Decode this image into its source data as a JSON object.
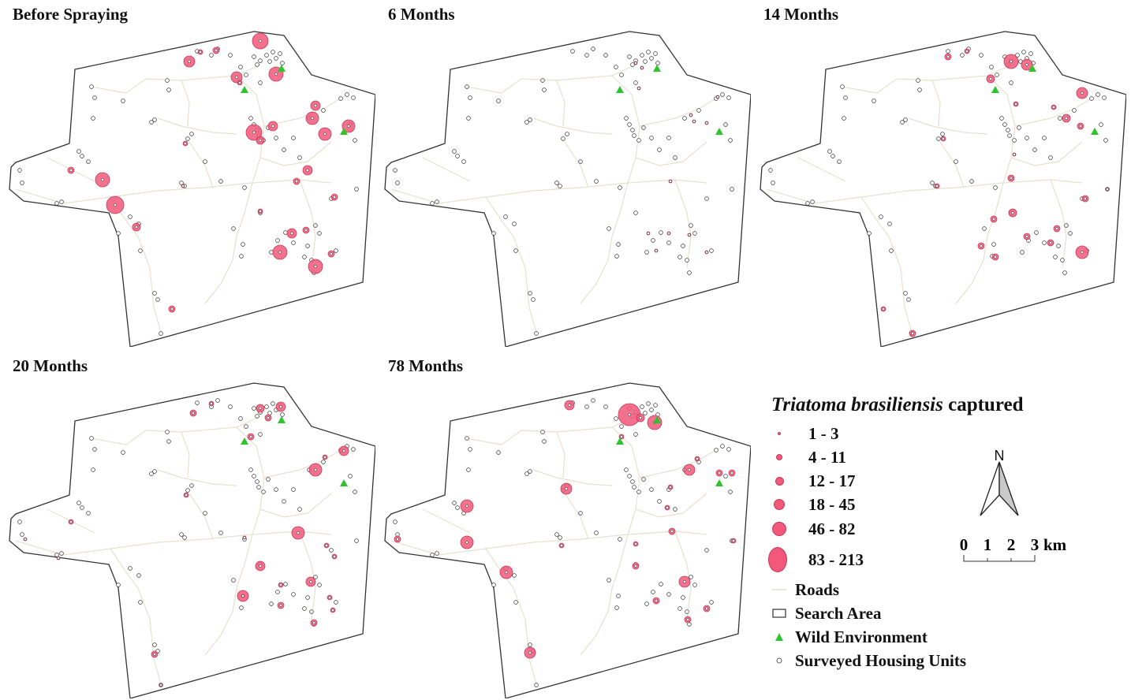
{
  "panels": [
    {
      "title": "Before Spraying"
    },
    {
      "title": "6 Months"
    },
    {
      "title": "14 Months"
    },
    {
      "title": "20 Months"
    },
    {
      "title": "78 Months"
    }
  ],
  "legend": {
    "title_species": "Triatoma brasiliensis",
    "title_rest": "captured",
    "classes": [
      "1 - 3",
      "4 - 11",
      "12 - 17",
      "18 - 45",
      "46 - 82",
      "83 - 213"
    ],
    "roads": "Roads",
    "search_area": "Search Area",
    "wild": "Wild Environment",
    "housing": "Surveyed Housing Units"
  },
  "north": {
    "label": "N"
  },
  "scale": {
    "ticks": [
      "0",
      "1",
      "2",
      "3"
    ],
    "unit": "km"
  },
  "colors": {
    "capture": "#f2587a",
    "capture_stroke": "#c23a58",
    "road": "#e8e0cf",
    "wild": "#2ec42e",
    "border": "#333333"
  }
}
